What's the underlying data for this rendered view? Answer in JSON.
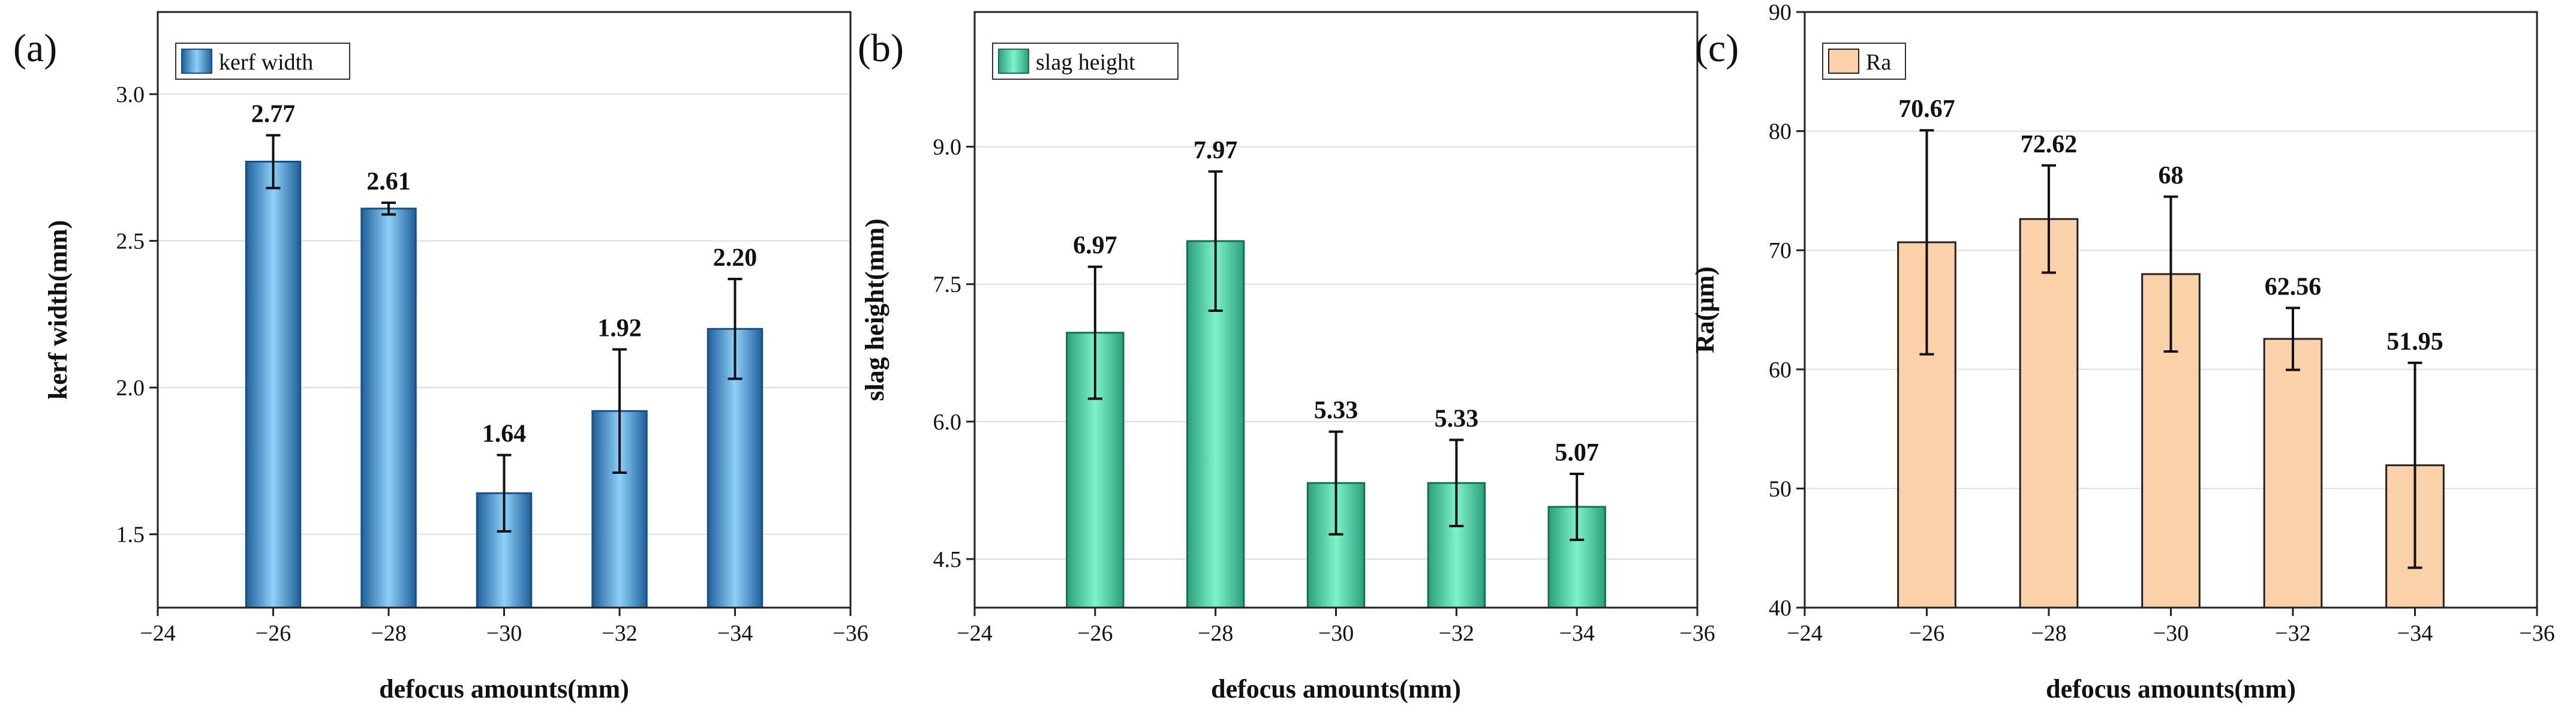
{
  "chart_data": [
    {
      "type": "bar",
      "panel_label": "(a)",
      "legend": "kerf width",
      "legend_position": "top-left",
      "color": "#7fc3ef",
      "edge_color": "#1a4f80",
      "xlabel": "defocus amounts(mm)",
      "ylabel": "kerf width(mm)",
      "xlim": [
        -24,
        -36
      ],
      "x_ticks": [
        -24,
        -26,
        -28,
        -30,
        -32,
        -34,
        -36
      ],
      "x_tick_labels": [
        "−24",
        "−26",
        "−28",
        "−30",
        "−32",
        "−34",
        "−36"
      ],
      "ylim": [
        1.25,
        3.28
      ],
      "y_ticks": [
        1.5,
        2.0,
        2.5,
        3.0
      ],
      "y_tick_labels": [
        "1.5",
        "2.0",
        "2.5",
        "3.0"
      ],
      "x": [
        -26,
        -28,
        -30,
        -32,
        -34
      ],
      "values": [
        2.77,
        2.61,
        1.64,
        1.92,
        2.2
      ],
      "errors": [
        0.09,
        0.02,
        0.13,
        0.21,
        0.17
      ],
      "data_labels": [
        "2.77",
        "2.61",
        "1.64",
        "1.92",
        "2.20"
      ]
    },
    {
      "type": "bar",
      "panel_label": "(b)",
      "legend": "slag height",
      "legend_position": "top-left",
      "color": "#6fe6bf",
      "edge_color": "#1a6d50",
      "xlabel": "defocus amounts(mm)",
      "ylabel": "slag height(mm)",
      "xlim": [
        -24,
        -36
      ],
      "x_ticks": [
        -24,
        -26,
        -28,
        -30,
        -32,
        -34,
        -36
      ],
      "x_tick_labels": [
        "−24",
        "−26",
        "−28",
        "−30",
        "−32",
        "−34",
        "−36"
      ],
      "ylim": [
        3.97,
        10.47
      ],
      "y_ticks": [
        4.5,
        6.0,
        7.5,
        9.0
      ],
      "y_tick_labels": [
        "4.5",
        "6.0",
        "7.5",
        "9.0"
      ],
      "x": [
        -26,
        -28,
        -30,
        -32,
        -34
      ],
      "values": [
        6.97,
        7.97,
        5.33,
        5.33,
        5.07
      ],
      "errors": [
        0.72,
        0.76,
        0.56,
        0.47,
        0.36
      ],
      "data_labels": [
        "6.97",
        "7.97",
        "5.33",
        "5.33",
        "5.07"
      ]
    },
    {
      "type": "bar",
      "panel_label": "(c)",
      "legend": "Ra",
      "legend_position": "top-left",
      "color": "#fbd1aa",
      "edge_color": "#222222",
      "xlabel": "defocus amounts(mm)",
      "ylabel": "Ra(μm)",
      "xlim": [
        -24,
        -36
      ],
      "x_ticks": [
        -24,
        -26,
        -28,
        -30,
        -32,
        -34,
        -36
      ],
      "x_tick_labels": [
        "−24",
        "−26",
        "−28",
        "−30",
        "−32",
        "−34",
        "−36"
      ],
      "ylim": [
        40,
        90
      ],
      "y_ticks": [
        40,
        50,
        60,
        70,
        80,
        90
      ],
      "y_tick_labels": [
        "40",
        "50",
        "60",
        "70",
        "80",
        "90"
      ],
      "x": [
        -26,
        -28,
        -30,
        -32,
        -34
      ],
      "values": [
        70.67,
        72.62,
        68,
        62.56,
        51.95
      ],
      "errors": [
        9.4,
        4.5,
        6.5,
        2.6,
        8.6
      ],
      "data_labels": [
        "70.67",
        "72.62",
        "68",
        "62.56",
        "51.95"
      ]
    }
  ]
}
